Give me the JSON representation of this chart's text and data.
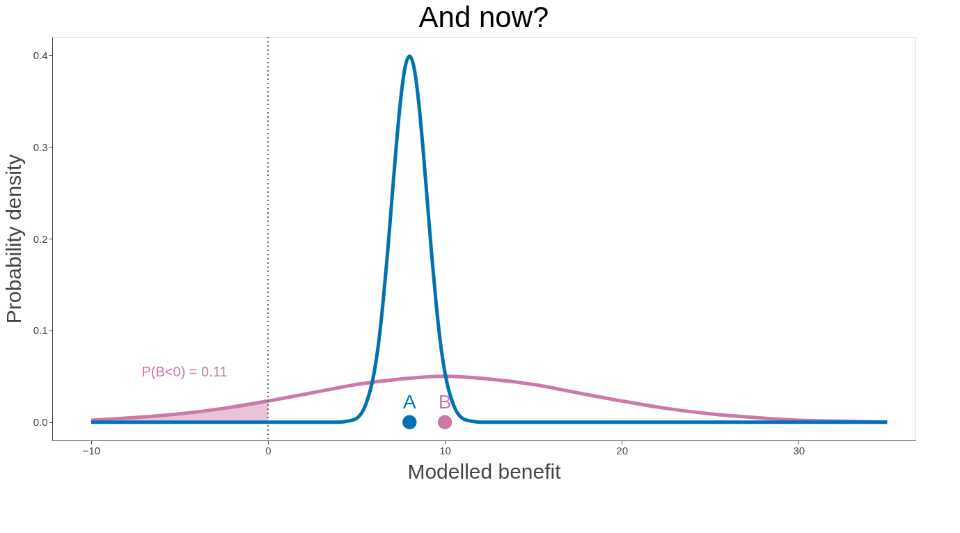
{
  "chart_data": {
    "type": "line",
    "title": "And now?",
    "xlabel": "Modelled benefit",
    "ylabel": "Probability density",
    "xlim": [
      -12.2,
      36.6
    ],
    "ylim": [
      -0.02,
      0.42
    ],
    "xticks": [
      -10,
      0,
      10,
      20,
      30
    ],
    "yticks": [
      {
        "value": 0,
        "label": "0.0"
      },
      {
        "value": 0.1,
        "label": "0.1"
      },
      {
        "value": 0.2,
        "label": "0.2"
      },
      {
        "value": 0.3,
        "label": "0.3"
      },
      {
        "value": 0.4,
        "label": "0.4"
      }
    ],
    "grid": false,
    "line_style": "solid",
    "series": [
      {
        "type": "area",
        "color": "#e9c4d9",
        "x": [
          -10,
          -7.5,
          -5,
          -2.5,
          0
        ],
        "values": [
          0.002,
          0.005,
          0.009,
          0.015,
          0.023
        ]
      },
      {
        "type": "line",
        "color": "#cc79a7",
        "x": [
          -10,
          -7.5,
          -5,
          -2.5,
          0,
          2.5,
          5,
          7.5,
          10,
          12.5,
          15,
          17.5,
          20,
          22.5,
          25,
          27.5,
          30,
          32.5,
          35
        ],
        "values": [
          0.002,
          0.005,
          0.009,
          0.015,
          0.023,
          0.032,
          0.041,
          0.047,
          0.05,
          0.047,
          0.041,
          0.032,
          0.023,
          0.015,
          0.009,
          0.005,
          0.002,
          0.001,
          0
        ]
      },
      {
        "type": "line",
        "color": "#0072b2",
        "x": [
          -10,
          4,
          4.5,
          5,
          5.5,
          6,
          6.25,
          6.5,
          6.75,
          7,
          7.25,
          7.5,
          7.75,
          8,
          8.25,
          8.5,
          8.75,
          9,
          9.25,
          9.5,
          9.75,
          10,
          10.5,
          11,
          11.5,
          12,
          35
        ],
        "values": [
          0,
          0,
          0.001,
          0.004,
          0.018,
          0.054,
          0.086,
          0.13,
          0.183,
          0.242,
          0.301,
          0.352,
          0.387,
          0.399,
          0.387,
          0.352,
          0.301,
          0.242,
          0.183,
          0.13,
          0.086,
          0.054,
          0.018,
          0.004,
          0.001,
          0,
          0
        ]
      },
      {
        "type": "scatter",
        "name": "A",
        "color": "#0072b2",
        "marker": "circle",
        "x": [
          8
        ],
        "values": [
          0
        ]
      },
      {
        "type": "scatter",
        "name": "B",
        "color": "#cc79a7",
        "marker": "circle",
        "x": [
          10
        ],
        "values": [
          0
        ]
      }
    ],
    "ref_lines": [
      {
        "axis": "x",
        "value": 0,
        "color": "#666666",
        "line_style": "dotted"
      }
    ],
    "annotations": [
      "P(B<0) = 0.11"
    ]
  }
}
